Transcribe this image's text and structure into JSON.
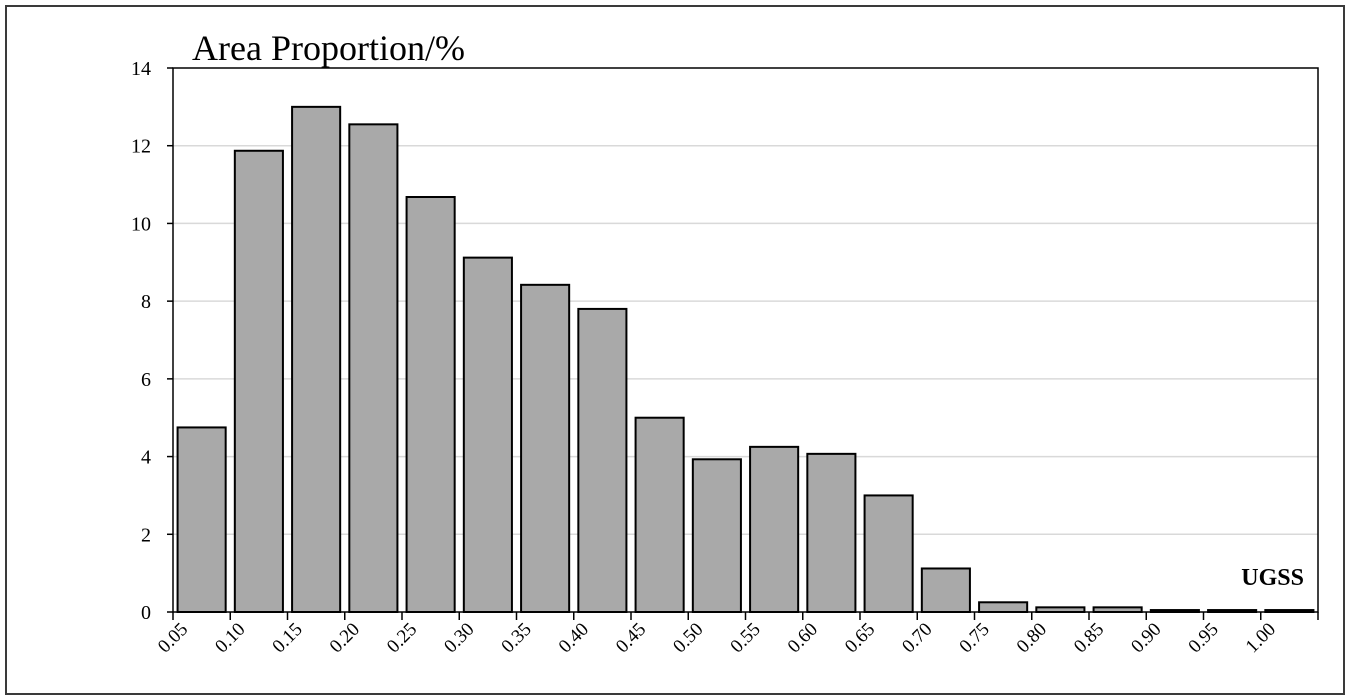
{
  "chart_data": {
    "type": "bar",
    "title": "Area Proportion/%",
    "annotation": "UGSS",
    "xlabel": "",
    "ylabel": "",
    "categories": [
      "0.05",
      "0.10",
      "0.15",
      "0.20",
      "0.25",
      "0.30",
      "0.35",
      "0.40",
      "0.45",
      "0.50",
      "0.55",
      "0.60",
      "0.65",
      "0.70",
      "0.75",
      "0.80",
      "0.85",
      "0.90",
      "0.95",
      "1.00"
    ],
    "values": [
      4.75,
      11.87,
      13.0,
      12.55,
      10.68,
      9.12,
      8.42,
      7.8,
      5.0,
      3.93,
      4.25,
      4.07,
      3.0,
      1.12,
      0.25,
      0.12,
      0.12,
      0.05,
      0.05,
      0.05
    ],
    "y_ticks": [
      "0",
      "2",
      "4",
      "6",
      "8",
      "10",
      "12",
      "14"
    ],
    "ylim": [
      0,
      14
    ],
    "grid": true,
    "colors": {
      "bar_fill": "#a9a9a9",
      "bar_stroke": "#000000",
      "grid": "#d9d9d9",
      "axis": "#000000"
    }
  }
}
